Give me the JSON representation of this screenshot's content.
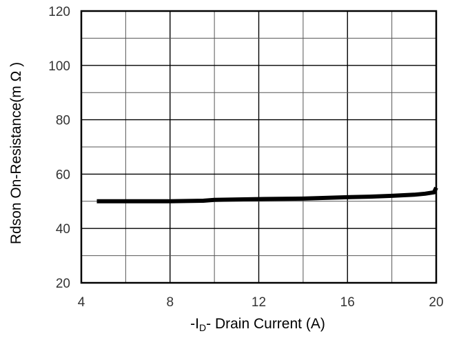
{
  "chart_data": {
    "type": "line",
    "xlabel": "-I",
    "xlabel_subscript": "D",
    "xlabel_suffix": "- Drain Current (A)",
    "ylabel": "Rdson On-Resistance(m Ω )",
    "xlim": [
      4,
      20
    ],
    "ylim": [
      20,
      120
    ],
    "x_ticks": [
      "4",
      "8",
      "12",
      "16",
      "20"
    ],
    "y_ticks": [
      "20",
      "40",
      "60",
      "80",
      "100",
      "120"
    ],
    "grid": true,
    "series": [
      {
        "color": "#000000",
        "x": [
          4.7,
          6,
          8,
          9.5,
          10,
          12,
          14,
          16,
          17,
          18,
          19,
          19.5,
          19.9,
          20
        ],
        "y": [
          50,
          50,
          50,
          50.2,
          50.5,
          50.8,
          51,
          51.5,
          51.7,
          52,
          52.4,
          52.8,
          53.3,
          55
        ]
      }
    ]
  }
}
